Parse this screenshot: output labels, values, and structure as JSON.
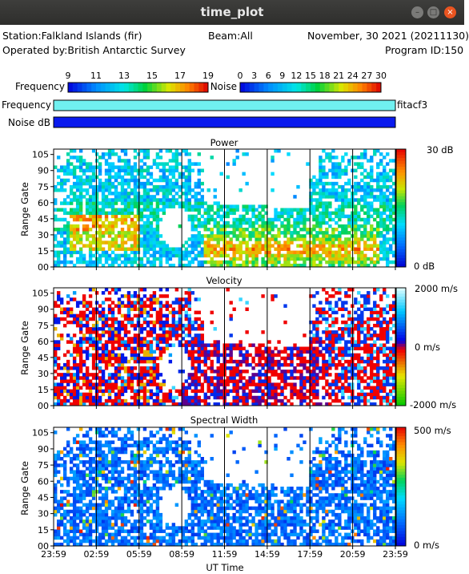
{
  "window": {
    "title": "time_plot",
    "controls": [
      "–",
      "□",
      "×"
    ]
  },
  "header": {
    "station": "Station:Falkland Islands (fir)",
    "beam": "Beam:All",
    "date": "November, 30 2021 (20211130)",
    "operator": "Operated by:British Antarctic Survey",
    "program": "Program ID:150"
  },
  "scales": {
    "frequency": {
      "label": "Frequency",
      "ticks": [
        "9",
        "11",
        "13",
        "15",
        "17",
        "19"
      ]
    },
    "noise": {
      "label": "Noise",
      "ticks": [
        "0",
        "3",
        "6",
        "9",
        "12",
        "15",
        "18",
        "21",
        "24",
        "27",
        "30"
      ]
    }
  },
  "strips": {
    "frequency_label": "Frequency",
    "noise_label": "Noise dB",
    "frequency_color": "#70f0f0",
    "noise_color": "#0a1aee",
    "program_name": "fitacf3"
  },
  "chart_data": [
    {
      "type": "heatmap",
      "title": "Power",
      "ylabel": "Range Gate",
      "xlabel": "",
      "y_ticks": [
        "00",
        "15",
        "30",
        "45",
        "60",
        "75",
        "90",
        "105"
      ],
      "ylim": [
        0,
        110
      ],
      "x_ticks": [
        "23:59",
        "02:59",
        "05:59",
        "08:59",
        "11:59",
        "14:59",
        "17:59",
        "20:59",
        "23:59"
      ],
      "colorbar": {
        "min_label": "0 dB",
        "max_label": "30 dB"
      },
      "colormap": "power"
    },
    {
      "type": "heatmap",
      "title": "Velocity",
      "ylabel": "Range Gate",
      "xlabel": "",
      "y_ticks": [
        "00",
        "15",
        "30",
        "45",
        "60",
        "75",
        "90",
        "105"
      ],
      "ylim": [
        0,
        110
      ],
      "x_ticks": [
        "23:59",
        "02:59",
        "05:59",
        "08:59",
        "11:59",
        "14:59",
        "17:59",
        "20:59",
        "23:59"
      ],
      "colorbar": {
        "max_label": "2000 m/s",
        "mid_label": "0 m/s",
        "min_label": "-2000 m/s"
      },
      "colormap": "velocity"
    },
    {
      "type": "heatmap",
      "title": "Spectral Width",
      "ylabel": "Range Gate",
      "xlabel": "UT Time",
      "y_ticks": [
        "00",
        "15",
        "30",
        "45",
        "60",
        "75",
        "90",
        "105"
      ],
      "ylim": [
        0,
        110
      ],
      "x_ticks": [
        "23:59",
        "02:59",
        "05:59",
        "08:59",
        "11:59",
        "14:59",
        "17:59",
        "20:59",
        "23:59"
      ],
      "colorbar": {
        "min_label": "0 m/s",
        "max_label": "500 m/s"
      },
      "colormap": "width"
    }
  ]
}
